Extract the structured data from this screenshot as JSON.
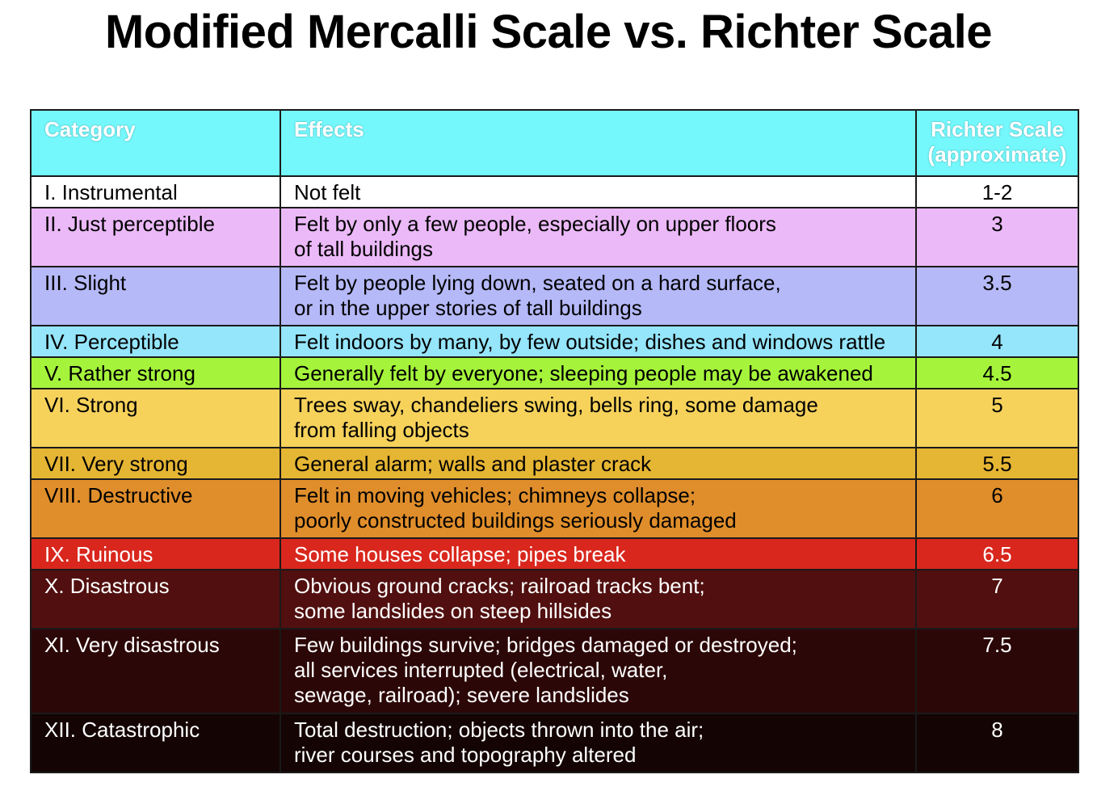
{
  "title": "Modified Mercalli Scale vs. Richter Scale",
  "colors": {
    "header": "#74f8fc"
  },
  "table": {
    "headers": {
      "category": "Category",
      "effects": "Effects",
      "richter": "Richter Scale\n(approximate)"
    },
    "rows": [
      {
        "category": "I. Instrumental",
        "effects": "Not felt",
        "richter": "1-2",
        "bg": "#ffffff",
        "fg": "#000000"
      },
      {
        "category": "II. Just perceptible",
        "effects": "Felt by only a few people, especially on upper floors\nof tall buildings",
        "richter": "3",
        "bg": "#ebb9f8",
        "fg": "#000000"
      },
      {
        "category": "III. Slight",
        "effects": "Felt by people lying down, seated on a hard surface,\nor in the upper stories of tall buildings",
        "richter": "3.5",
        "bg": "#b5b9f8",
        "fg": "#000000"
      },
      {
        "category": "IV. Perceptible",
        "effects": "Felt indoors by many, by few outside; dishes and windows rattle",
        "richter": "4",
        "bg": "#95e5fb",
        "fg": "#000000"
      },
      {
        "category": "V. Rather strong",
        "effects": "Generally felt by everyone; sleeping people may be awakened",
        "richter": "4.5",
        "bg": "#a5f43b",
        "fg": "#000000"
      },
      {
        "category": "VI. Strong",
        "effects": "Trees sway, chandeliers swing, bells ring, some damage\nfrom falling objects",
        "richter": "5",
        "bg": "#f6d25b",
        "fg": "#000000"
      },
      {
        "category": "VII. Very strong",
        "effects": "General alarm; walls and plaster crack",
        "richter": "5.5",
        "bg": "#e5b534",
        "fg": "#000000"
      },
      {
        "category": "VIII. Destructive",
        "effects": "Felt in moving vehicles; chimneys collapse;\npoorly constructed buildings seriously damaged",
        "richter": "6",
        "bg": "#e08e2b",
        "fg": "#000000"
      },
      {
        "category": "IX. Ruinous",
        "effects": "Some houses collapse; pipes break",
        "richter": "6.5",
        "bg": "#d9271d",
        "fg": "#ffffff"
      },
      {
        "category": "X. Disastrous",
        "effects": "Obvious ground cracks; railroad tracks bent;\nsome landslides on steep hillsides",
        "richter": "7",
        "bg": "#510f0f",
        "fg": "#ffffff"
      },
      {
        "category": "XI. Very disastrous",
        "effects": "Few buildings survive; bridges damaged or destroyed;\nall services interrupted (electrical, water,\nsewage, railroad); severe landslides",
        "richter": "7.5",
        "bg": "#2c0707",
        "fg": "#ffffff"
      },
      {
        "category": "XII. Catastrophic",
        "effects": "Total destruction; objects thrown into the air;\nriver courses and topography altered",
        "richter": "8",
        "bg": "#140404",
        "fg": "#ffffff"
      }
    ]
  }
}
